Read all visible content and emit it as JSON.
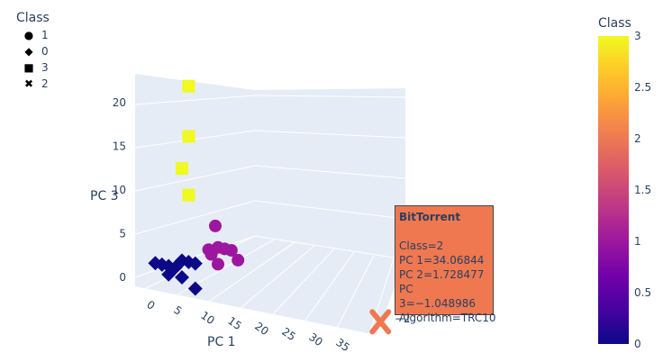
{
  "legend": {
    "title": "Class",
    "items": [
      {
        "symbol": "●",
        "label": "1"
      },
      {
        "symbol": "◆",
        "label": "0"
      },
      {
        "symbol": "■",
        "label": "3"
      },
      {
        "symbol": "✖",
        "label": "2"
      }
    ]
  },
  "colorbar": {
    "title": "Class",
    "ticks": [
      "0",
      "0.5",
      "1",
      "1.5",
      "2",
      "2.5",
      "3"
    ],
    "colors": [
      "#0d0887",
      "#46039f",
      "#7201a8",
      "#9c179e",
      "#bd3786",
      "#d8576b",
      "#ed7953",
      "#fb9f3a",
      "#fdca26",
      "#f0f921"
    ]
  },
  "hover": {
    "title": "BitTorrent",
    "lines": [
      "Class=2",
      "PC 1=34.06844",
      "PC 2=1.728477",
      "PC 3=−1.048986",
      "Algorithm=TRC10"
    ]
  },
  "chart_data": {
    "type": "scatter",
    "title": "",
    "xlabel": "PC 1",
    "ylabel": "",
    "zlabel": "PC 3",
    "x_ticks": [
      "0",
      "5",
      "10",
      "15",
      "20",
      "25",
      "30",
      "35"
    ],
    "z_ticks": [
      "0",
      "5",
      "10",
      "15",
      "20"
    ],
    "y_ticks": [
      "−2"
    ],
    "series": [
      {
        "name": "1",
        "symbol": "circle",
        "color": "#9c179e",
        "points": [
          [
            10,
            0,
            7
          ],
          [
            9,
            0,
            4
          ],
          [
            10,
            1,
            4
          ],
          [
            11,
            1,
            4
          ],
          [
            12,
            1,
            4
          ],
          [
            13,
            1,
            3
          ],
          [
            9,
            1,
            3
          ],
          [
            10,
            1,
            2
          ]
        ]
      },
      {
        "name": "0",
        "symbol": "diamond",
        "color": "#0d0887",
        "points": [
          [
            1,
            0,
            1
          ],
          [
            2,
            0,
            1
          ],
          [
            3,
            0,
            1
          ],
          [
            4,
            0,
            1
          ],
          [
            5,
            0,
            2
          ],
          [
            6,
            0,
            2
          ],
          [
            7,
            0,
            2
          ],
          [
            3,
            0,
            0
          ],
          [
            5,
            0,
            0
          ],
          [
            7,
            0,
            -1
          ]
        ]
      },
      {
        "name": "3",
        "symbol": "square",
        "color": "#f0f921",
        "points": [
          [
            6,
            0,
            23
          ],
          [
            6,
            0,
            17
          ],
          [
            5,
            0,
            13
          ],
          [
            6,
            0,
            10
          ]
        ]
      },
      {
        "name": "2",
        "symbol": "x",
        "color": "#ef7850",
        "points": [
          [
            34.06844,
            1.728477,
            -1.048986
          ]
        ]
      }
    ]
  }
}
